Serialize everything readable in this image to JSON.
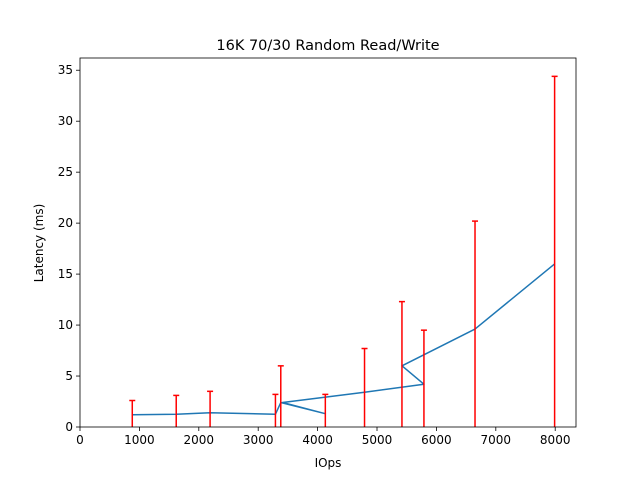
{
  "chart_data": {
    "type": "line",
    "title": "16K 70/30  Random Read/Write",
    "xlabel": "IOps",
    "ylabel": "Latency (ms)",
    "xlim": [
      0,
      8350
    ],
    "ylim": [
      0,
      36.2
    ],
    "xticks": [
      0,
      1000,
      2000,
      3000,
      4000,
      5000,
      6000,
      7000,
      8000
    ],
    "yticks": [
      0,
      5,
      10,
      15,
      20,
      25,
      30,
      35
    ],
    "grid": false,
    "series": [
      {
        "color": "#1f77b4",
        "x": [
          880,
          1620,
          2190,
          3290,
          3380,
          4130,
          3410,
          4790,
          5790,
          5420,
          6650,
          7990
        ],
        "y": [
          1.2,
          1.25,
          1.4,
          1.25,
          2.4,
          1.3,
          2.4,
          3.4,
          4.2,
          6.0,
          9.6,
          16.0
        ]
      }
    ],
    "error_bars": {
      "color": "#ff0000",
      "x": [
        880,
        1620,
        2190,
        3290,
        3380,
        4130,
        4790,
        5420,
        5790,
        6650,
        7990
      ],
      "upper": [
        2.6,
        3.1,
        3.5,
        3.2,
        6.0,
        3.2,
        7.7,
        12.3,
        9.5,
        20.2,
        34.4
      ]
    }
  }
}
